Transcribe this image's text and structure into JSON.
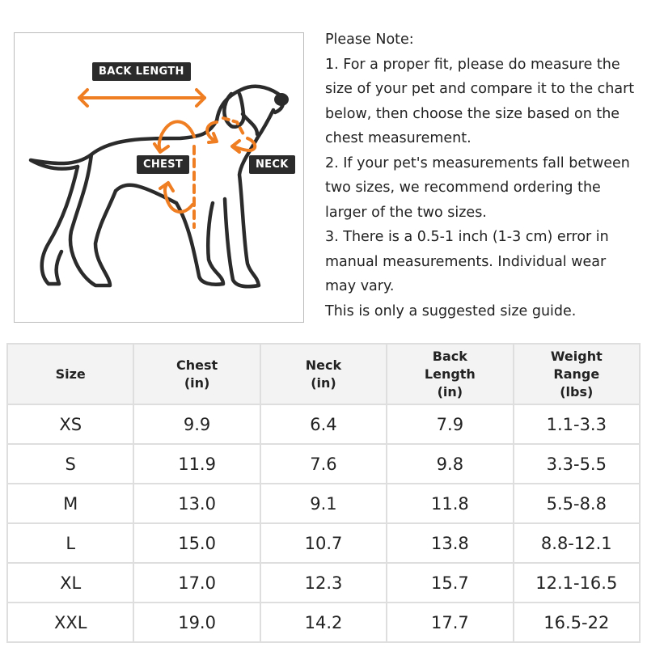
{
  "diagram": {
    "labels": {
      "back_length": "BACK LENGTH",
      "chest": "CHEST",
      "neck": "NECK"
    },
    "accent_color": "#ef7d22",
    "line_color": "#2b2b2b"
  },
  "note": {
    "lines": [
      "Please Note:",
      "1. For a proper fit, please do measure the",
      "size of your pet and compare it to the chart",
      "below, then choose the size based on the",
      "chest measurement.",
      "2. If your pet's measurements fall between",
      "two sizes, we recommend ordering the",
      "larger of the two sizes.",
      "3. There is a 0.5-1 inch (1-3 cm) error in",
      "manual measurements. Individual wear",
      "may vary.",
      "This is only a suggested size guide."
    ]
  },
  "size_table": {
    "headers": [
      [
        "Size"
      ],
      [
        "Chest",
        "(in)"
      ],
      [
        "Neck",
        "(in)"
      ],
      [
        "Back",
        "Length",
        "(in)"
      ],
      [
        "Weight",
        "Range",
        "(lbs)"
      ]
    ],
    "rows": [
      [
        "XS",
        "9.9",
        "6.4",
        "7.9",
        "1.1-3.3"
      ],
      [
        "S",
        "11.9",
        "7.6",
        "9.8",
        "3.3-5.5"
      ],
      [
        "M",
        "13.0",
        "9.1",
        "11.8",
        "5.5-8.8"
      ],
      [
        "L",
        "15.0",
        "10.7",
        "13.8",
        "8.8-12.1"
      ],
      [
        "XL",
        "17.0",
        "12.3",
        "15.7",
        "12.1-16.5"
      ],
      [
        "XXL",
        "19.0",
        "14.2",
        "17.7",
        "16.5-22"
      ]
    ]
  }
}
